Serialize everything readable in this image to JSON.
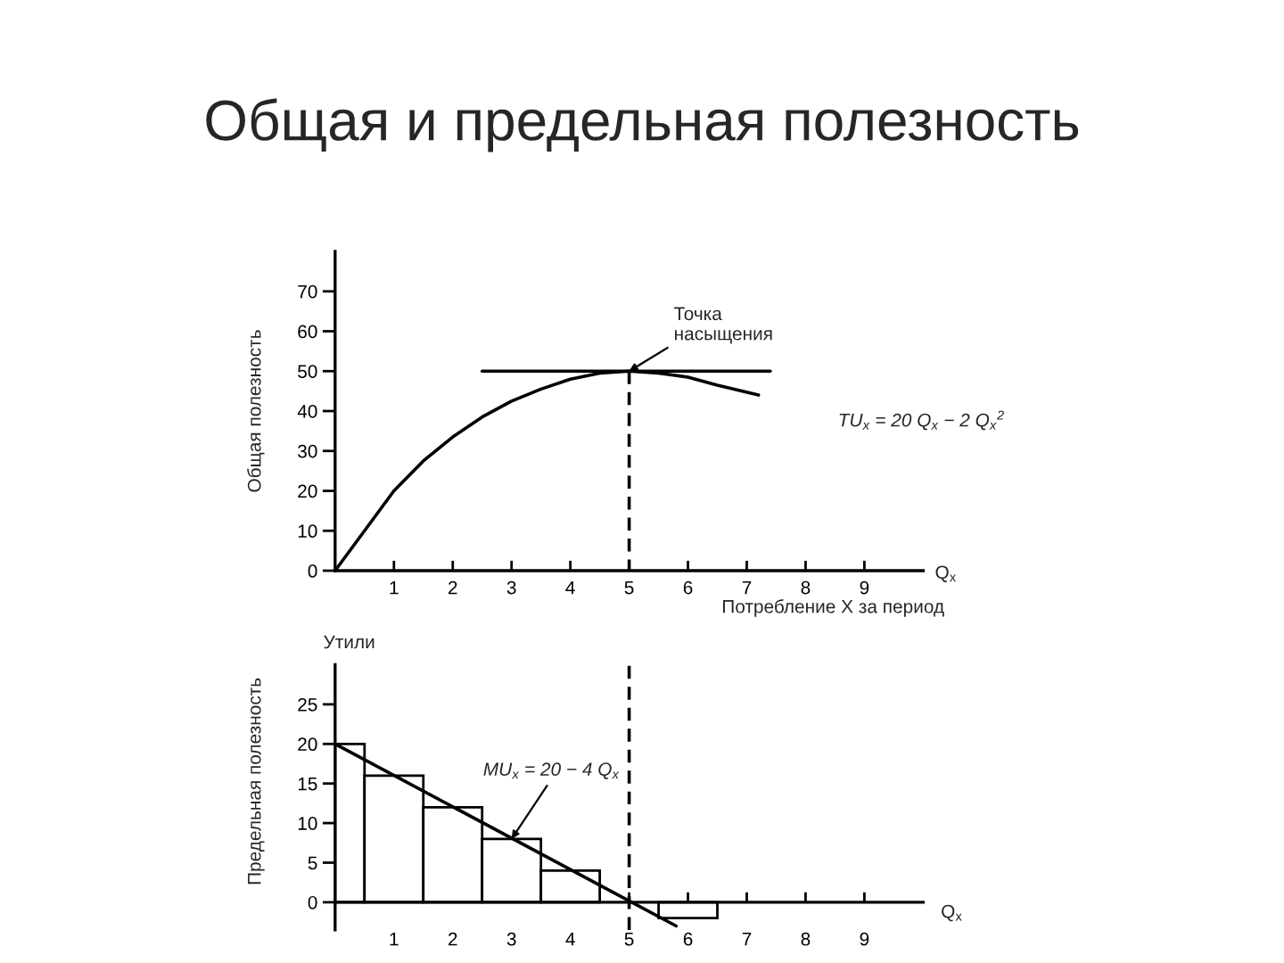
{
  "chart_data": [
    {
      "type": "line",
      "title": "Общая и предельная полезность",
      "xlabel": "Потребление X за период",
      "ylabel": "Общая полезность",
      "xlim": [
        0,
        10
      ],
      "ylim": [
        0,
        80
      ],
      "xticks": [
        1,
        2,
        3,
        4,
        5,
        6,
        7,
        8,
        9
      ],
      "yticks": [
        0,
        10,
        20,
        30,
        40,
        50,
        60,
        70
      ],
      "series": [
        {
          "x": [
            0,
            0.5,
            1,
            1.5,
            2,
            2.5,
            3,
            3.5,
            4,
            4.5,
            5,
            5.5,
            6,
            6.5,
            7.2
          ],
          "values": [
            0,
            10,
            20,
            27.5,
            33.5,
            38.5,
            42.5,
            45.5,
            48,
            49.5,
            50,
            49.5,
            48.5,
            46.5,
            44
          ],
          "color": "#000000"
        },
        {
          "x": [
            2.5,
            7.4
          ],
          "values": [
            50,
            50
          ],
          "color": "#000000"
        },
        {
          "x": [
            5,
            5,
            5
          ],
          "values": [
            50,
            25,
            0
          ],
          "color": "#000000",
          "line_style": "dashed"
        }
      ],
      "annotations": [
        {
          "text": "Точка\nнасыщения",
          "x": 5,
          "y": 50
        },
        "TU$_{x}$ = 20 Q$_{x}$ − 2 Q$_{x}$$^{2}$",
        "Q$_{x}$"
      ]
    },
    {
      "type": "histogram",
      "ylabel": "Предельная полезность",
      "xlim": [
        0,
        10
      ],
      "ylim": [
        -3.5,
        30
      ],
      "xticks": [
        1,
        2,
        3,
        4,
        5,
        6,
        7,
        8,
        9
      ],
      "yticks": [
        0,
        5,
        10,
        15,
        20,
        25
      ],
      "series": [
        {
          "type": "histogram",
          "bins": [
            0,
            0.5,
            1.5,
            2.5,
            3.5,
            4.5,
            5.5,
            6.5
          ],
          "values": [
            20,
            16,
            12,
            8,
            4,
            null,
            -2
          ],
          "color": "#ffffff"
        },
        {
          "type": "line",
          "x": [
            0,
            5.8
          ],
          "values": [
            20,
            -3
          ],
          "color": "#000000"
        }
      ],
      "ref_lines": [
        {
          "axis": "x",
          "value": 5,
          "color": "#000000",
          "line_style": "dashed"
        }
      ],
      "annotations": [
        {
          "text": "MU$_{x}$ = 20 − 4 Q$_{x}$",
          "x": 3,
          "y": 8
        },
        "Утили",
        "Q$_{x}$"
      ]
    }
  ]
}
